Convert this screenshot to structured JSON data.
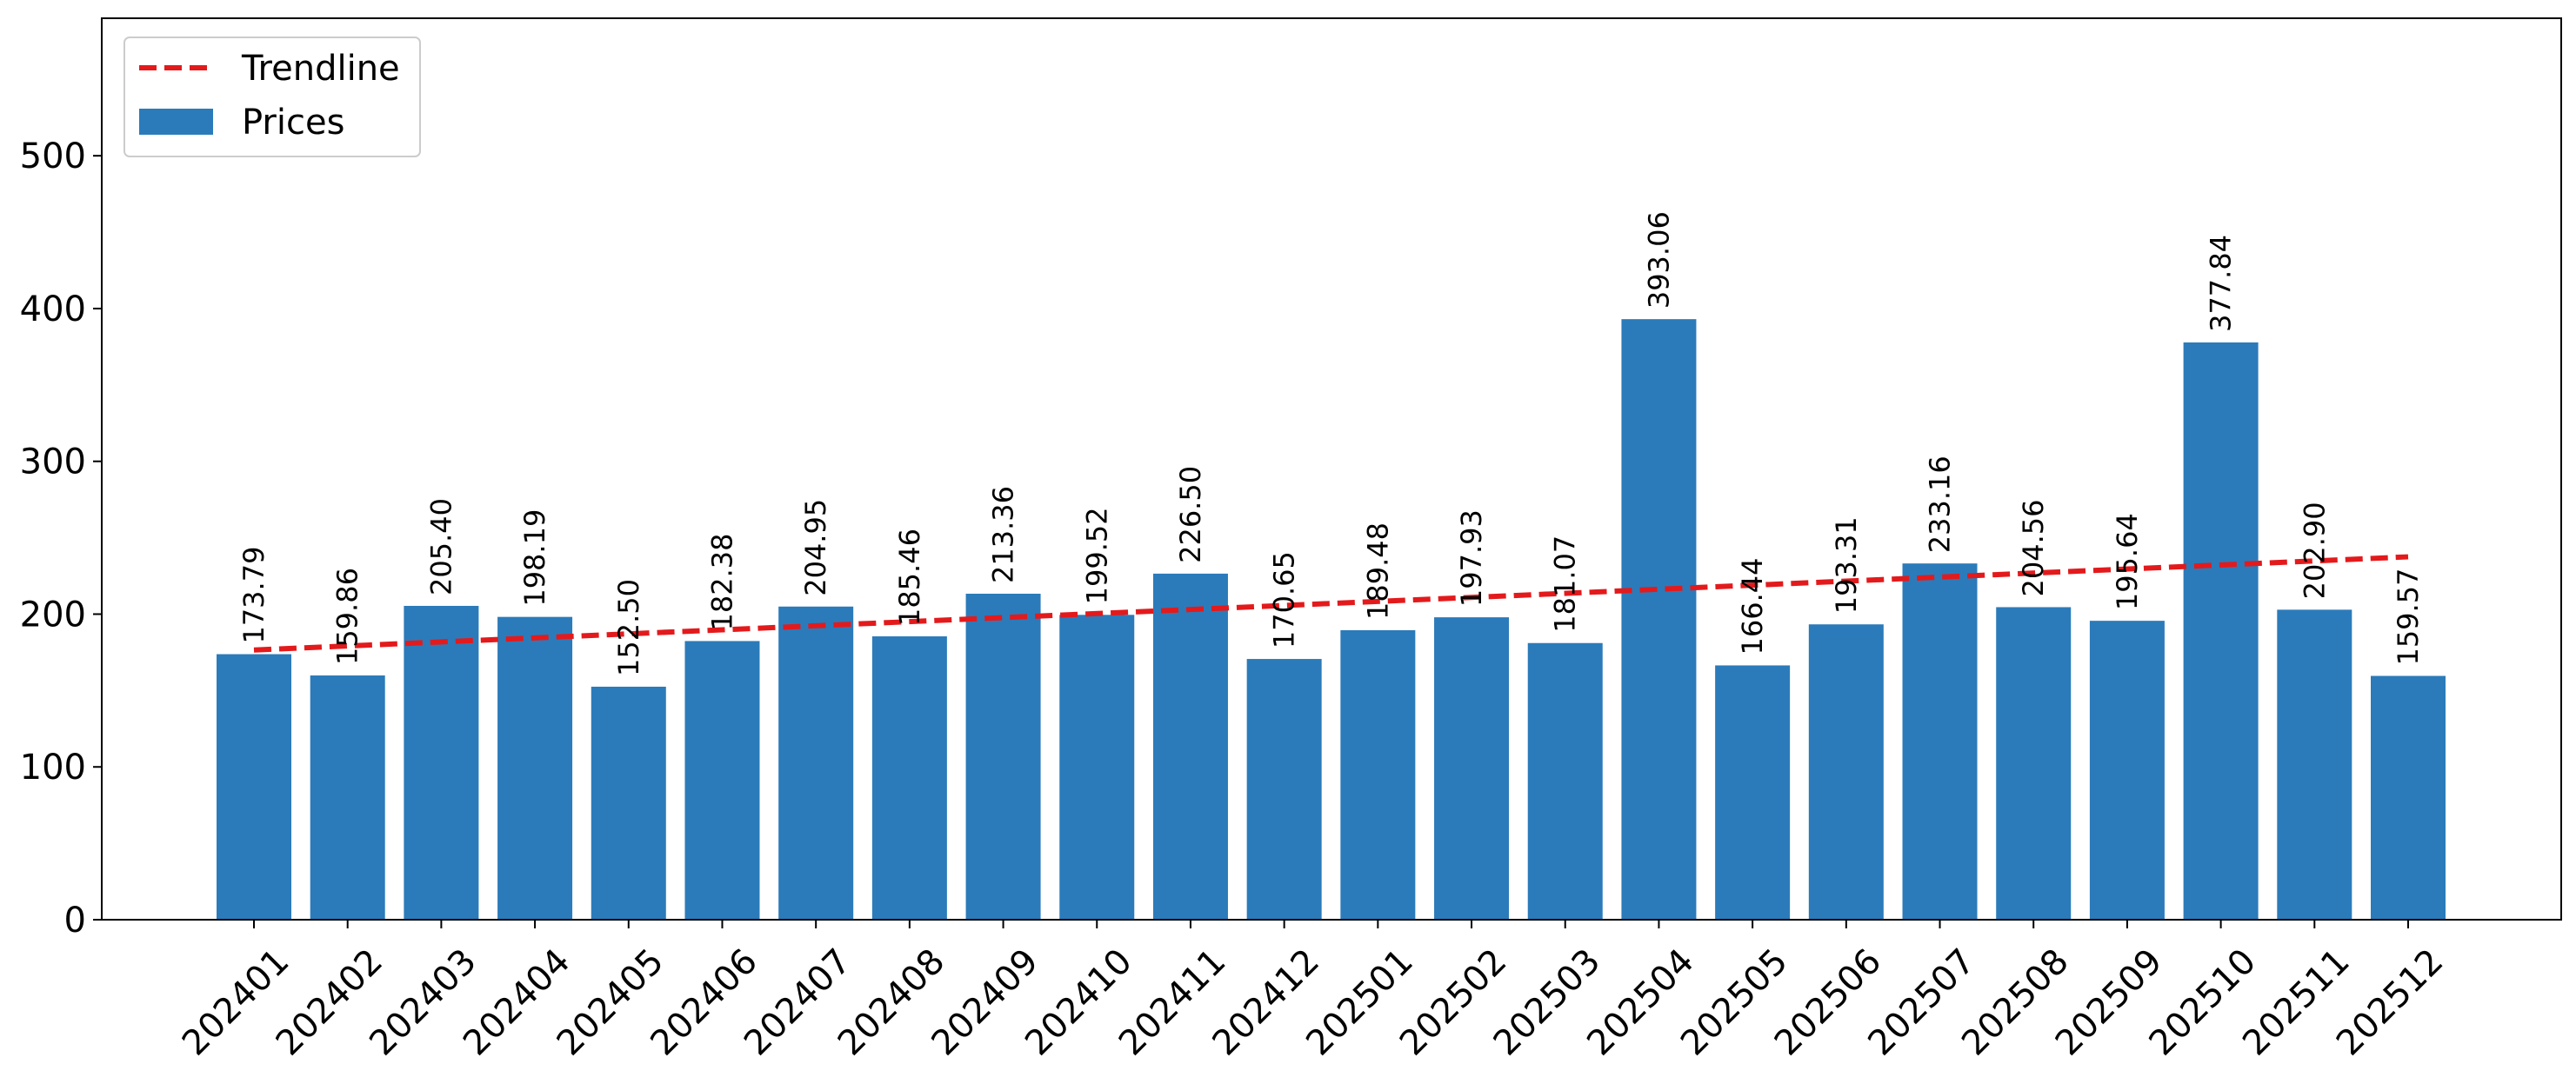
{
  "chart_data": {
    "type": "bar",
    "categories": [
      "202401",
      "202402",
      "202403",
      "202404",
      "202405",
      "202406",
      "202407",
      "202408",
      "202409",
      "202410",
      "202411",
      "202412",
      "202501",
      "202502",
      "202503",
      "202504",
      "202505",
      "202506",
      "202507",
      "202508",
      "202509",
      "202510",
      "202511",
      "202512"
    ],
    "values": [
      173.79,
      159.86,
      205.4,
      198.19,
      152.5,
      182.38,
      204.95,
      185.46,
      213.36,
      199.52,
      226.5,
      170.65,
      189.48,
      197.93,
      181.07,
      393.06,
      166.44,
      193.31,
      233.16,
      204.56,
      195.64,
      377.84,
      202.9,
      159.57
    ],
    "value_labels": [
      "173.79",
      "159.86",
      "205.40",
      "198.19",
      "152.50",
      "182.38",
      "204.95",
      "185.46",
      "213.36",
      "199.52",
      "226.50",
      "170.65",
      "189.48",
      "197.93",
      "181.07",
      "393.06",
      "166.44",
      "193.31",
      "233.16",
      "204.56",
      "195.64",
      "377.84",
      "202.90",
      "159.57"
    ],
    "series": [
      {
        "name": "Prices",
        "color": "#2b7bba"
      }
    ],
    "trendline": {
      "name": "Trendline",
      "color": "#e31a1c",
      "style": "dashed",
      "start": 176.5,
      "end": 237.5
    },
    "ylim": [
      0,
      590
    ],
    "yticks": [
      0,
      100,
      200,
      300,
      400,
      500
    ],
    "ytick_labels": [
      "0",
      "100",
      "200",
      "300",
      "400",
      "500"
    ],
    "title": "",
    "xlabel": "",
    "ylabel": "",
    "legend": {
      "placement": "top-left",
      "entries": [
        "Trendline",
        "Prices"
      ]
    },
    "grid": false
  }
}
